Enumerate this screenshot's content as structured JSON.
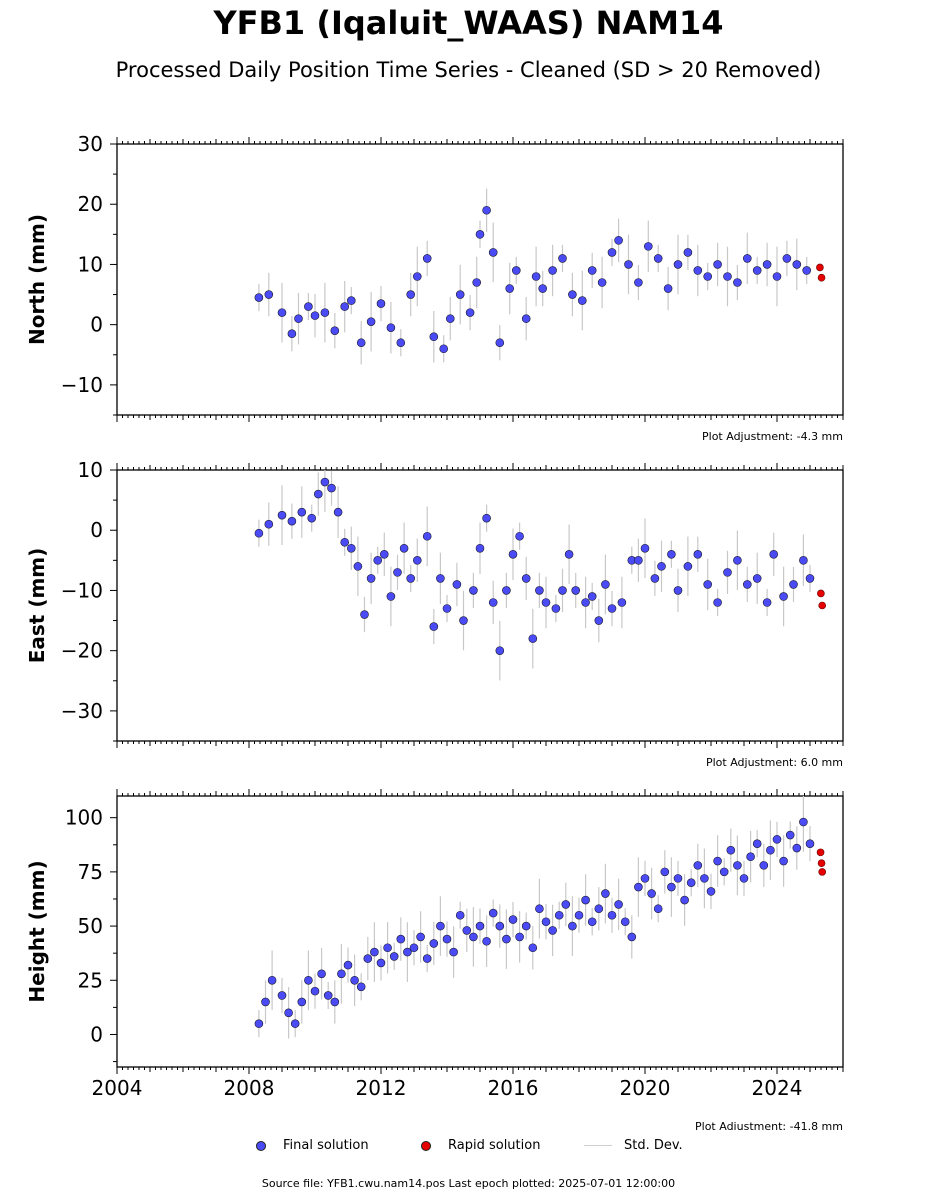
{
  "title": "YFB1 (Iqaluit_WAAS) NAM14",
  "subtitle": "Processed Daily Position Time Series - Cleaned (SD > 20 Removed)",
  "source_text": "Source file: YFB1.cwu.nam14.pos  Last epoch plotted: 2025-07-01 12:00:00",
  "legend": {
    "final_label": "Final solution",
    "rapid_label": "Rapid solution",
    "std_label": "Std. Dev."
  },
  "colors": {
    "final": "#4b4bf5",
    "rapid": "#e60000",
    "std": "#c8c8c8",
    "marker_edge": "#1a1a2e"
  },
  "chart_data": [
    {
      "type": "scatter",
      "name": "North",
      "ylabel": "North (mm)",
      "ylim": [
        -15,
        30
      ],
      "yticks": [
        -10,
        0,
        10,
        20,
        30
      ],
      "xlim": [
        2004,
        2026
      ],
      "adjustment": "Plot Adjustment: -4.3 mm",
      "final": [
        [
          2008.3,
          4.5
        ],
        [
          2008.6,
          5
        ],
        [
          2009.0,
          2
        ],
        [
          2009.3,
          -1.5
        ],
        [
          2009.5,
          1
        ],
        [
          2009.8,
          3
        ],
        [
          2010.0,
          1.5
        ],
        [
          2010.3,
          2
        ],
        [
          2010.6,
          -1
        ],
        [
          2010.9,
          3
        ],
        [
          2011.1,
          4
        ],
        [
          2011.4,
          -3
        ],
        [
          2011.7,
          0.5
        ],
        [
          2012.0,
          3.5
        ],
        [
          2012.3,
          -0.5
        ],
        [
          2012.6,
          -3
        ],
        [
          2012.9,
          5
        ],
        [
          2013.1,
          8
        ],
        [
          2013.4,
          11
        ],
        [
          2013.6,
          -2
        ],
        [
          2013.9,
          -4
        ],
        [
          2014.1,
          1
        ],
        [
          2014.4,
          5
        ],
        [
          2014.7,
          2
        ],
        [
          2014.9,
          7
        ],
        [
          2015.0,
          15
        ],
        [
          2015.2,
          19
        ],
        [
          2015.4,
          12
        ],
        [
          2015.6,
          -3
        ],
        [
          2015.9,
          6
        ],
        [
          2016.1,
          9
        ],
        [
          2016.4,
          1
        ],
        [
          2016.7,
          8
        ],
        [
          2016.9,
          6
        ],
        [
          2017.2,
          9
        ],
        [
          2017.5,
          11
        ],
        [
          2017.8,
          5
        ],
        [
          2018.1,
          4
        ],
        [
          2018.4,
          9
        ],
        [
          2018.7,
          7
        ],
        [
          2019.0,
          12
        ],
        [
          2019.2,
          14
        ],
        [
          2019.5,
          10
        ],
        [
          2019.8,
          7
        ],
        [
          2020.1,
          13
        ],
        [
          2020.4,
          11
        ],
        [
          2020.7,
          6
        ],
        [
          2021.0,
          10
        ],
        [
          2021.3,
          12
        ],
        [
          2021.6,
          9
        ],
        [
          2021.9,
          8
        ],
        [
          2022.2,
          10
        ],
        [
          2022.5,
          8
        ],
        [
          2022.8,
          7
        ],
        [
          2023.1,
          11
        ],
        [
          2023.4,
          9
        ],
        [
          2023.7,
          10
        ],
        [
          2024.0,
          8
        ],
        [
          2024.3,
          11
        ],
        [
          2024.6,
          10
        ],
        [
          2024.9,
          9
        ]
      ],
      "rapid": [
        [
          2025.3,
          9.5
        ],
        [
          2025.35,
          7.8
        ]
      ]
    },
    {
      "type": "scatter",
      "name": "East",
      "ylabel": "East (mm)",
      "ylim": [
        -35,
        10
      ],
      "yticks": [
        -30,
        -20,
        -10,
        0,
        10
      ],
      "xlim": [
        2004,
        2026
      ],
      "adjustment": "Plot Adjustment: 6.0 mm",
      "final": [
        [
          2008.3,
          -0.5
        ],
        [
          2008.6,
          1
        ],
        [
          2009.0,
          2.5
        ],
        [
          2009.3,
          1.5
        ],
        [
          2009.6,
          3
        ],
        [
          2009.9,
          2
        ],
        [
          2010.1,
          6
        ],
        [
          2010.3,
          8
        ],
        [
          2010.5,
          7
        ],
        [
          2010.7,
          3
        ],
        [
          2010.9,
          -2
        ],
        [
          2011.1,
          -3
        ],
        [
          2011.3,
          -6
        ],
        [
          2011.5,
          -14
        ],
        [
          2011.7,
          -8
        ],
        [
          2011.9,
          -5
        ],
        [
          2012.1,
          -4
        ],
        [
          2012.3,
          -11
        ],
        [
          2012.5,
          -7
        ],
        [
          2012.7,
          -3
        ],
        [
          2012.9,
          -8
        ],
        [
          2013.1,
          -5
        ],
        [
          2013.4,
          -1
        ],
        [
          2013.6,
          -16
        ],
        [
          2013.8,
          -8
        ],
        [
          2014.0,
          -13
        ],
        [
          2014.3,
          -9
        ],
        [
          2014.5,
          -15
        ],
        [
          2014.8,
          -10
        ],
        [
          2015.0,
          -3
        ],
        [
          2015.2,
          2
        ],
        [
          2015.4,
          -12
        ],
        [
          2015.6,
          -20
        ],
        [
          2015.8,
          -10
        ],
        [
          2016.0,
          -4
        ],
        [
          2016.2,
          -1
        ],
        [
          2016.4,
          -8
        ],
        [
          2016.6,
          -18
        ],
        [
          2016.8,
          -10
        ],
        [
          2017.0,
          -12
        ],
        [
          2017.3,
          -13
        ],
        [
          2017.5,
          -10
        ],
        [
          2017.7,
          -4
        ],
        [
          2017.9,
          -10
        ],
        [
          2018.2,
          -12
        ],
        [
          2018.4,
          -11
        ],
        [
          2018.6,
          -15
        ],
        [
          2018.8,
          -9
        ],
        [
          2019.0,
          -13
        ],
        [
          2019.3,
          -12
        ],
        [
          2019.6,
          -5
        ],
        [
          2019.8,
          -5
        ],
        [
          2020.0,
          -3
        ],
        [
          2020.3,
          -8
        ],
        [
          2020.5,
          -6
        ],
        [
          2020.8,
          -4
        ],
        [
          2021.0,
          -10
        ],
        [
          2021.3,
          -6
        ],
        [
          2021.6,
          -4
        ],
        [
          2021.9,
          -9
        ],
        [
          2022.2,
          -12
        ],
        [
          2022.5,
          -7
        ],
        [
          2022.8,
          -5
        ],
        [
          2023.1,
          -9
        ],
        [
          2023.4,
          -8
        ],
        [
          2023.7,
          -12
        ],
        [
          2023.9,
          -4
        ],
        [
          2024.2,
          -11
        ],
        [
          2024.5,
          -9
        ],
        [
          2024.8,
          -5
        ],
        [
          2025.0,
          -8
        ]
      ],
      "rapid": [
        [
          2025.33,
          -10.5
        ],
        [
          2025.37,
          -12.5
        ]
      ]
    },
    {
      "type": "scatter",
      "name": "Height",
      "ylabel": "Height (mm)",
      "xlabel": "",
      "ylim": [
        -15,
        110
      ],
      "yticks": [
        0,
        25,
        50,
        75,
        100
      ],
      "xticks": [
        2004,
        2008,
        2012,
        2016,
        2020,
        2024
      ],
      "xlim": [
        2004,
        2026
      ],
      "adjustment": "Plot Adjustment: -41.8 mm",
      "final": [
        [
          2008.3,
          5
        ],
        [
          2008.5,
          15
        ],
        [
          2008.7,
          25
        ],
        [
          2009.0,
          18
        ],
        [
          2009.2,
          10
        ],
        [
          2009.4,
          5
        ],
        [
          2009.6,
          15
        ],
        [
          2009.8,
          25
        ],
        [
          2010.0,
          20
        ],
        [
          2010.2,
          28
        ],
        [
          2010.4,
          18
        ],
        [
          2010.6,
          15
        ],
        [
          2010.8,
          28
        ],
        [
          2011.0,
          32
        ],
        [
          2011.2,
          25
        ],
        [
          2011.4,
          22
        ],
        [
          2011.6,
          35
        ],
        [
          2011.8,
          38
        ],
        [
          2012.0,
          33
        ],
        [
          2012.2,
          40
        ],
        [
          2012.4,
          36
        ],
        [
          2012.6,
          44
        ],
        [
          2012.8,
          38
        ],
        [
          2013.0,
          40
        ],
        [
          2013.2,
          45
        ],
        [
          2013.4,
          35
        ],
        [
          2013.6,
          42
        ],
        [
          2013.8,
          50
        ],
        [
          2014.0,
          44
        ],
        [
          2014.2,
          38
        ],
        [
          2014.4,
          55
        ],
        [
          2014.6,
          48
        ],
        [
          2014.8,
          45
        ],
        [
          2015.0,
          50
        ],
        [
          2015.2,
          43
        ],
        [
          2015.4,
          56
        ],
        [
          2015.6,
          50
        ],
        [
          2015.8,
          44
        ],
        [
          2016.0,
          53
        ],
        [
          2016.2,
          45
        ],
        [
          2016.4,
          50
        ],
        [
          2016.6,
          40
        ],
        [
          2016.8,
          58
        ],
        [
          2017.0,
          52
        ],
        [
          2017.2,
          48
        ],
        [
          2017.4,
          55
        ],
        [
          2017.6,
          60
        ],
        [
          2017.8,
          50
        ],
        [
          2018.0,
          55
        ],
        [
          2018.2,
          62
        ],
        [
          2018.4,
          52
        ],
        [
          2018.6,
          58
        ],
        [
          2018.8,
          65
        ],
        [
          2019.0,
          55
        ],
        [
          2019.2,
          60
        ],
        [
          2019.4,
          52
        ],
        [
          2019.6,
          45
        ],
        [
          2019.8,
          68
        ],
        [
          2020.0,
          72
        ],
        [
          2020.2,
          65
        ],
        [
          2020.4,
          58
        ],
        [
          2020.6,
          75
        ],
        [
          2020.8,
          68
        ],
        [
          2021.0,
          72
        ],
        [
          2021.2,
          62
        ],
        [
          2021.4,
          70
        ],
        [
          2021.6,
          78
        ],
        [
          2021.8,
          72
        ],
        [
          2022.0,
          66
        ],
        [
          2022.2,
          80
        ],
        [
          2022.4,
          75
        ],
        [
          2022.6,
          85
        ],
        [
          2022.8,
          78
        ],
        [
          2023.0,
          72
        ],
        [
          2023.2,
          82
        ],
        [
          2023.4,
          88
        ],
        [
          2023.6,
          78
        ],
        [
          2023.8,
          85
        ],
        [
          2024.0,
          90
        ],
        [
          2024.2,
          80
        ],
        [
          2024.4,
          92
        ],
        [
          2024.6,
          86
        ],
        [
          2024.8,
          98
        ],
        [
          2025.0,
          88
        ]
      ],
      "rapid": [
        [
          2025.32,
          84
        ],
        [
          2025.35,
          79
        ],
        [
          2025.37,
          75
        ]
      ]
    }
  ]
}
